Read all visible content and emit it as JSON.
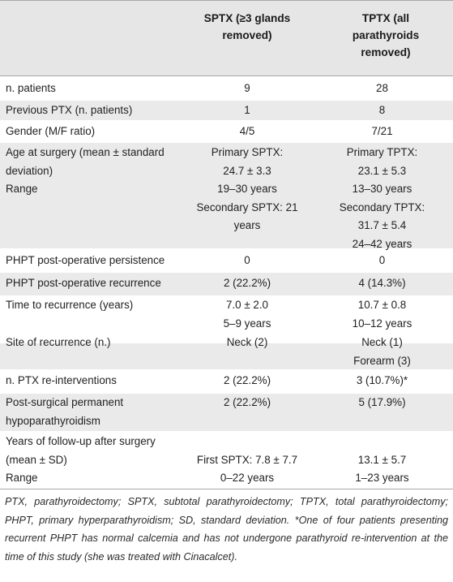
{
  "header": {
    "col1": [
      "SPTX (≥3 glands",
      "removed)"
    ],
    "col2": [
      "TPTX (all",
      "parathyroids",
      "removed)"
    ]
  },
  "rows": [
    {
      "label": [
        "n. patients"
      ],
      "sptx": [
        "9"
      ],
      "tptx": [
        "28"
      ]
    },
    {
      "label": [
        "Previous PTX (n. patients)"
      ],
      "sptx": [
        "1"
      ],
      "tptx": [
        "8"
      ]
    },
    {
      "label": [
        "Gender (M/F ratio)"
      ],
      "sptx": [
        "4/5"
      ],
      "tptx": [
        "7/21"
      ]
    },
    {
      "label": [
        "Age at surgery (mean ± standard",
        "deviation)",
        "Range"
      ],
      "sptx": [
        "Primary SPTX:",
        "24.7 ± 3.3",
        "19–30 years",
        "Secondary SPTX: 21",
        "years"
      ],
      "tptx": [
        "Primary TPTX:",
        "23.1 ± 5.3",
        "13–30 years",
        "Secondary TPTX:",
        "31.7 ± 5.4",
        "24–42 years"
      ]
    },
    {
      "label": [
        "PHPT post-operative persistence"
      ],
      "sptx": [
        "0"
      ],
      "tptx": [
        "0"
      ]
    },
    {
      "label": [
        "PHPT post-operative recurrence"
      ],
      "sptx": [
        "2 (22.2%)"
      ],
      "tptx": [
        "4 (14.3%)"
      ]
    },
    {
      "label": [
        "Time to recurrence (years)"
      ],
      "sptx": [
        "7.0 ± 2.0",
        "5–9 years"
      ],
      "tptx": [
        "10.7 ± 0.8",
        "10–12 years"
      ]
    },
    {
      "label": [
        "Site of recurrence (n.)"
      ],
      "sptx": [
        "Neck (2)"
      ],
      "tptx": [
        "Neck (1)",
        "Forearm (3)"
      ]
    },
    {
      "label": [
        "n. PTX re-interventions"
      ],
      "sptx": [
        "2 (22.2%)"
      ],
      "tptx": [
        "3 (10.7%)*"
      ]
    },
    {
      "label": [
        "Post-surgical permanent",
        "hypoparathyroidism"
      ],
      "sptx": [
        "2 (22.2%)"
      ],
      "tptx": [
        "5 (17.9%)"
      ]
    },
    {
      "label": [
        "Years of follow-up after surgery",
        "(mean ± SD)",
        "Range"
      ],
      "sptx": [
        "",
        "First SPTX: 7.8 ± 7.7",
        "0–22 years"
      ],
      "tptx": [
        "",
        "13.1 ± 5.7",
        "1–23 years"
      ]
    }
  ],
  "footnote": {
    "abbrev": "PTX, parathyroidectomy; SPTX, subtotal parathyroidectomy; TPTX, total parathyroidectomy; PHPT, primary hyperparathyroidism; SD, standard deviation.",
    "star": "*One of four patients presenting recurrent PHPT has normal calcemia and has not undergone parathyroid re-intervention at the time of this study (she was treated with Cinacalcet)."
  }
}
